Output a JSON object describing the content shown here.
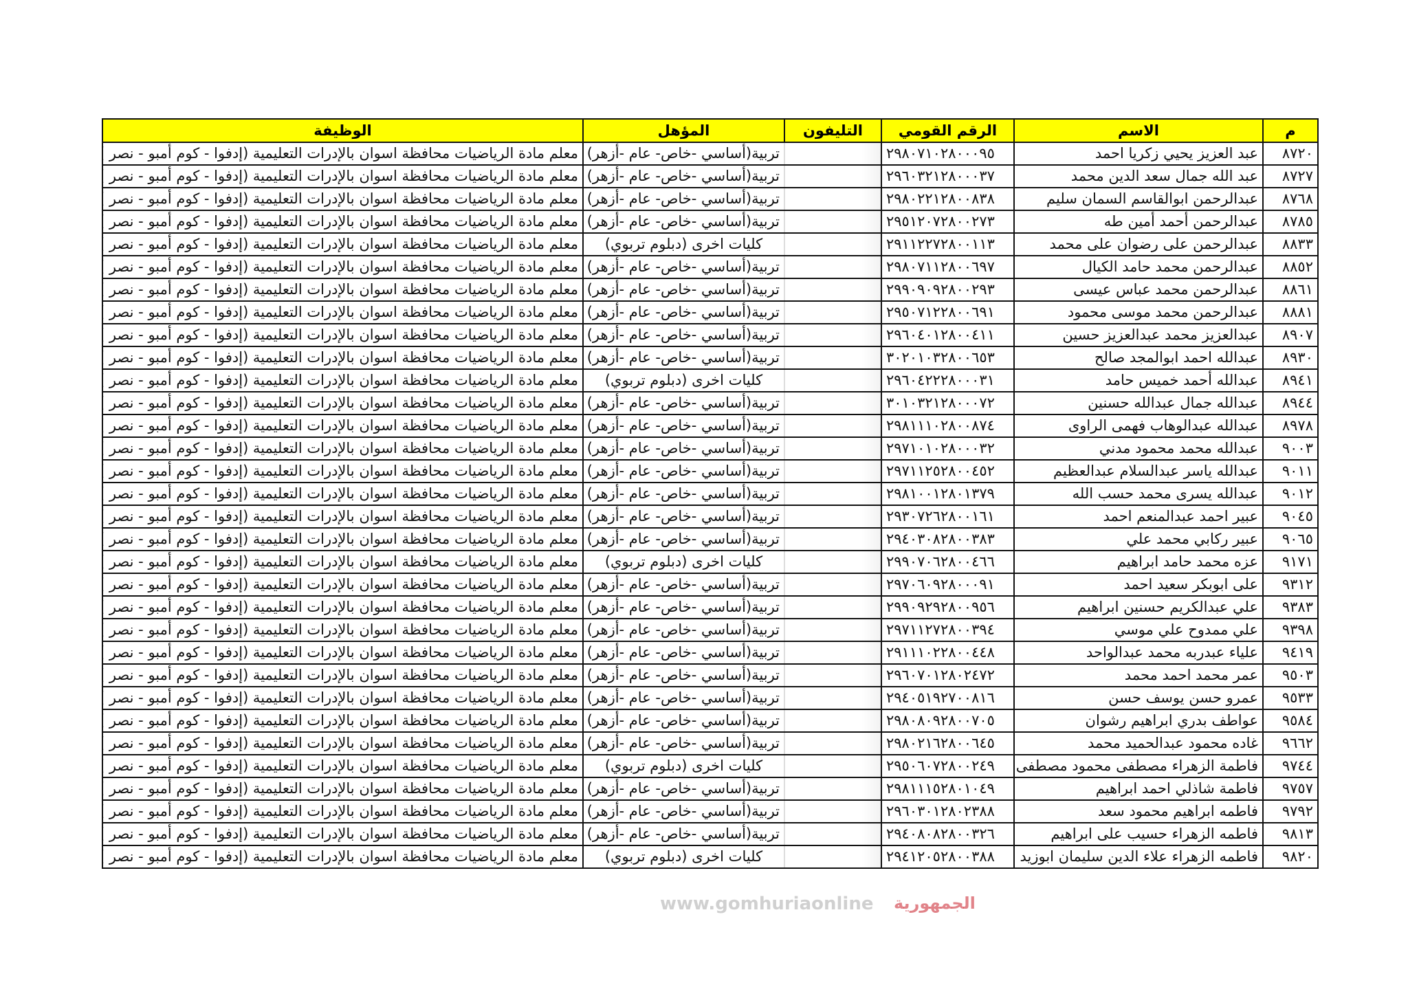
{
  "table": {
    "headers": {
      "serial": "م",
      "name": "الاسم",
      "national_id": "الرقم القومي",
      "phone": "التليفون",
      "qualification": "المؤهل",
      "job": "الوظيفة"
    },
    "header_color": "#ffff00",
    "rows": [
      {
        "serial": "٨٧٢٠",
        "name": "عبد العزيز يحيي زكريا احمد",
        "national_id": "٢٩٨٠٧١٠٢٨٠٠٠٩٥",
        "qualification": "تربية(أساسي -خاص- عام -أزهر)",
        "job": "معلم مادة الرياضيات  محافظة اسوان بالإدرات التعليمية (إدفوا - كوم أمبو - نصر )"
      },
      {
        "serial": "٨٧٢٧",
        "name": "عبد الله جمال سعد الدين محمد",
        "national_id": "٢٩٦٠٣٢١٢٨٠٠٠٣٧",
        "qualification": "تربية(أساسي -خاص- عام -أزهر)",
        "job": "معلم مادة الرياضيات  محافظة اسوان بالإدرات التعليمية (إدفوا - كوم أمبو - نصر )"
      },
      {
        "serial": "٨٧٦٨",
        "name": "عبدالرحمن ابوالقاسم السمان سليم",
        "national_id": "٢٩٨٠٢٢١٢٨٠٠٨٣٨",
        "qualification": "تربية(أساسي -خاص- عام -أزهر)",
        "job": "معلم مادة الرياضيات  محافظة اسوان بالإدرات التعليمية (إدفوا - كوم أمبو - نصر )"
      },
      {
        "serial": "٨٧٨٥",
        "name": "عبدالرحمن أحمد أمين طه",
        "national_id": "٢٩٥١٢٠٧٢٨٠٠٢٧٣",
        "qualification": "تربية(أساسي -خاص- عام -أزهر)",
        "job": "معلم مادة الرياضيات  محافظة اسوان بالإدرات التعليمية (إدفوا - كوم أمبو - نصر )"
      },
      {
        "serial": "٨٨٣٣",
        "name": "عبدالرحمن على رضوان على محمد",
        "national_id": "٢٩١١٢٢٧٢٨٠٠١١٣",
        "qualification": "كليات اخرى (دبلوم تربوي)",
        "job": "معلم مادة الرياضيات  محافظة اسوان بالإدرات التعليمية (إدفوا - كوم أمبو - نصر )"
      },
      {
        "serial": "٨٨٥٢",
        "name": "عبدالرحمن محمد حامد الكيال",
        "national_id": "٢٩٨٠٧١١٢٨٠٠٦٩٧",
        "qualification": "تربية(أساسي -خاص- عام -أزهر)",
        "job": "معلم مادة الرياضيات  محافظة اسوان بالإدرات التعليمية (إدفوا - كوم أمبو - نصر )"
      },
      {
        "serial": "٨٨٦١",
        "name": "عبدالرحمن محمد عباس عيسى",
        "national_id": "٢٩٩٠٩٠٩٢٨٠٠٢٩٣",
        "qualification": "تربية(أساسي -خاص- عام -أزهر)",
        "job": "معلم مادة الرياضيات  محافظة اسوان بالإدرات التعليمية (إدفوا - كوم أمبو - نصر )"
      },
      {
        "serial": "٨٨٨١",
        "name": "عبدالرحمن محمد موسى محمود",
        "national_id": "٢٩٥٠٧١٢٢٨٠٠٦٩١",
        "qualification": "تربية(أساسي -خاص- عام -أزهر)",
        "job": "معلم مادة الرياضيات  محافظة اسوان بالإدرات التعليمية (إدفوا - كوم أمبو - نصر )"
      },
      {
        "serial": "٨٩٠٧",
        "name": "عبدالعزيز محمد عبدالعزيز حسين",
        "national_id": "٢٩٦٠٤٠١٢٨٠٠٤١١",
        "qualification": "تربية(أساسي -خاص- عام -أزهر)",
        "job": "معلم مادة الرياضيات  محافظة اسوان بالإدرات التعليمية (إدفوا - كوم أمبو - نصر )"
      },
      {
        "serial": "٨٩٣٠",
        "name": "عبدالله احمد ابوالمجد صالح",
        "national_id": "٣٠٢٠١٠٣٢٨٠٠٦٥٣",
        "qualification": "تربية(أساسي -خاص- عام -أزهر)",
        "job": "معلم مادة الرياضيات  محافظة اسوان بالإدرات التعليمية (إدفوا - كوم أمبو - نصر )"
      },
      {
        "serial": "٨٩٤١",
        "name": "عبدالله أحمد خميس حامد",
        "national_id": "٢٩٦٠٤٢٢٢٨٠٠٠٣١",
        "qualification": "كليات اخرى (دبلوم تربوي)",
        "job": "معلم مادة الرياضيات  محافظة اسوان بالإدرات التعليمية (إدفوا - كوم أمبو - نصر )"
      },
      {
        "serial": "٨٩٤٤",
        "name": "عبدالله جمال عبدالله حسنين",
        "national_id": "٣٠١٠٣٢١٢٨٠٠٠٧٢",
        "qualification": "تربية(أساسي -خاص- عام -أزهر)",
        "job": "معلم مادة الرياضيات  محافظة اسوان بالإدرات التعليمية (إدفوا - كوم أمبو - نصر )"
      },
      {
        "serial": "٨٩٧٨",
        "name": "عبدالله عبدالوهاب فهمى الراوى",
        "national_id": "٢٩٨١١١٠٢٨٠٠٨٧٤",
        "qualification": "تربية(أساسي -خاص- عام -أزهر)",
        "job": "معلم مادة الرياضيات  محافظة اسوان بالإدرات التعليمية (إدفوا - كوم أمبو - نصر )"
      },
      {
        "serial": "٩٠٠٣",
        "name": "عبدالله محمد محمود مدني",
        "national_id": "٢٩٧١٠١٠٢٨٠٠٠٣٢",
        "qualification": "تربية(أساسي -خاص- عام -أزهر)",
        "job": "معلم مادة الرياضيات  محافظة اسوان بالإدرات التعليمية (إدفوا - كوم أمبو - نصر )"
      },
      {
        "serial": "٩٠١١",
        "name": "عبدالله ياسر عبدالسلام عبدالعظيم",
        "national_id": "٢٩٧١١٢٥٢٨٠٠٤٥٢",
        "qualification": "تربية(أساسي -خاص- عام -أزهر)",
        "job": "معلم مادة الرياضيات  محافظة اسوان بالإدرات التعليمية (إدفوا - كوم أمبو - نصر )"
      },
      {
        "serial": "٩٠١٢",
        "name": "عبدالله يسرى محمد حسب الله",
        "national_id": "٢٩٨١٠٠١٢٨٠١٣٧٩",
        "qualification": "تربية(أساسي -خاص- عام -أزهر)",
        "job": "معلم مادة الرياضيات  محافظة اسوان بالإدرات التعليمية (إدفوا - كوم أمبو - نصر )"
      },
      {
        "serial": "٩٠٤٥",
        "name": "عبير احمد عبدالمنعم احمد",
        "national_id": "٢٩٣٠٧٢٦٢٨٠٠١٦١",
        "qualification": "تربية(أساسي -خاص- عام -أزهر)",
        "job": "معلم مادة الرياضيات  محافظة اسوان بالإدرات التعليمية (إدفوا - كوم أمبو - نصر )"
      },
      {
        "serial": "٩٠٦٥",
        "name": "عبير ركابي محمد علي",
        "national_id": "٢٩٤٠٣٠٨٢٨٠٠٣٨٣",
        "qualification": "تربية(أساسي -خاص- عام -أزهر)",
        "job": "معلم مادة الرياضيات  محافظة اسوان بالإدرات التعليمية (إدفوا - كوم أمبو - نصر )"
      },
      {
        "serial": "٩١٧١",
        "name": "عزه محمد حامد ابراهيم",
        "national_id": "٢٩٩٠٧٠٦٢٨٠٠٤٦٦",
        "qualification": "كليات اخرى (دبلوم تربوي)",
        "job": "معلم مادة الرياضيات  محافظة اسوان بالإدرات التعليمية (إدفوا - كوم أمبو - نصر )"
      },
      {
        "serial": "٩٣١٢",
        "name": "على ابوبكر سعيد احمد",
        "national_id": "٢٩٧٠٦٠٩٢٨٠٠٠٩١",
        "qualification": "تربية(أساسي -خاص- عام -أزهر)",
        "job": "معلم مادة الرياضيات  محافظة اسوان بالإدرات التعليمية (إدفوا - كوم أمبو - نصر )"
      },
      {
        "serial": "٩٣٨٣",
        "name": "علي عبدالكريم حسنين ابراهيم",
        "national_id": "٢٩٩٠٩٢٩٢٨٠٠٩٥٦",
        "qualification": "تربية(أساسي -خاص- عام -أزهر)",
        "job": "معلم مادة الرياضيات  محافظة اسوان بالإدرات التعليمية (إدفوا - كوم أمبو - نصر )"
      },
      {
        "serial": "٩٣٩٨",
        "name": "علي ممدوح علي موسي",
        "national_id": "٢٩٧١١٢٧٢٨٠٠٣٩٤",
        "qualification": "تربية(أساسي -خاص- عام -أزهر)",
        "job": "معلم مادة الرياضيات  محافظة اسوان بالإدرات التعليمية (إدفوا - كوم أمبو - نصر )"
      },
      {
        "serial": "٩٤١٩",
        "name": "علياء عبدربه محمد عبدالواحد",
        "national_id": "٢٩١١١٠٢٢٨٠٠٤٤٨",
        "qualification": "تربية(أساسي -خاص- عام -أزهر)",
        "job": "معلم مادة الرياضيات  محافظة اسوان بالإدرات التعليمية (إدفوا - كوم أمبو - نصر )"
      },
      {
        "serial": "٩٥٠٣",
        "name": "عمر محمد احمد محمد",
        "national_id": "٢٩٦٠٧٠١٢٨٠٢٤٧٢",
        "qualification": "تربية(أساسي -خاص- عام -أزهر)",
        "job": "معلم مادة الرياضيات  محافظة اسوان بالإدرات التعليمية (إدفوا - كوم أمبو - نصر )"
      },
      {
        "serial": "٩٥٣٣",
        "name": "عمرو حسن يوسف حسن",
        "national_id": "٢٩٤٠٥١٩٢٧٠٠٨١٦",
        "qualification": "تربية(أساسي -خاص- عام -أزهر)",
        "job": "معلم مادة الرياضيات  محافظة اسوان بالإدرات التعليمية (إدفوا - كوم أمبو - نصر )"
      },
      {
        "serial": "٩٥٨٤",
        "name": "عواطف بدري ابراهيم رشوان",
        "national_id": "٢٩٨٠٨٠٩٢٨٠٠٧٠٥",
        "qualification": "تربية(أساسي -خاص- عام -أزهر)",
        "job": "معلم مادة الرياضيات  محافظة اسوان بالإدرات التعليمية (إدفوا - كوم أمبو - نصر )"
      },
      {
        "serial": "٩٦٦٢",
        "name": "غاده محمود عبدالحميد محمد",
        "national_id": "٢٩٨٠٢١٦٢٨٠٠٦٤٥",
        "qualification": "تربية(أساسي -خاص- عام -أزهر)",
        "job": "معلم مادة الرياضيات  محافظة اسوان بالإدرات التعليمية (إدفوا - كوم أمبو - نصر )"
      },
      {
        "serial": "٩٧٤٤",
        "name": "فاطمة الزهراء مصطفى محمود مصطفى",
        "national_id": "٢٩٥٠٦٠٧٢٨٠٠٢٤٩",
        "qualification": "كليات اخرى (دبلوم تربوي)",
        "job": "معلم مادة الرياضيات  محافظة اسوان بالإدرات التعليمية (إدفوا - كوم أمبو - نصر )"
      },
      {
        "serial": "٩٧٥٧",
        "name": "فاطمة شاذلي احمد ابراهيم",
        "national_id": "٢٩٨١١١٥٢٨٠١٠٤٩",
        "qualification": "تربية(أساسي -خاص- عام -أزهر)",
        "job": "معلم مادة الرياضيات  محافظة اسوان بالإدرات التعليمية (إدفوا - كوم أمبو - نصر )"
      },
      {
        "serial": "٩٧٩٢",
        "name": "فاطمه ابراهيم محمود سعد",
        "national_id": "٢٩٦٠٣٠١٢٨٠٢٣٨٨",
        "qualification": "تربية(أساسي -خاص- عام -أزهر)",
        "job": "معلم مادة الرياضيات  محافظة اسوان بالإدرات التعليمية (إدفوا - كوم أمبو - نصر )"
      },
      {
        "serial": "٩٨١٣",
        "name": "فاطمه الزهراء حسيب على ابراهيم",
        "national_id": "٢٩٤٠٨٠٨٢٨٠٠٣٢٦",
        "qualification": "تربية(أساسي -خاص- عام -أزهر)",
        "job": "معلم مادة الرياضيات  محافظة اسوان بالإدرات التعليمية (إدفوا - كوم أمبو - نصر )"
      },
      {
        "serial": "٩٨٢٠",
        "name": "فاطمه الزهراء علاء الدين سليمان ابوزيد",
        "national_id": "٢٩٤١٢٠٥٢٨٠٠٣٨٨",
        "qualification": "كليات اخرى (دبلوم تربوي)",
        "job": "معلم مادة الرياضيات  محافظة اسوان بالإدرات التعليمية (إدفوا - كوم أمبو - نصر )"
      }
    ]
  },
  "watermark": {
    "url_text": "www.gomhuriaonline",
    "logo_text": "الجمهورية"
  }
}
